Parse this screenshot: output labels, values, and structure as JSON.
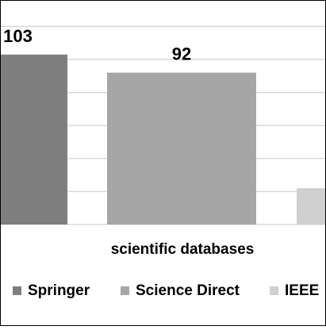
{
  "chart_data": {
    "type": "bar",
    "categories": [
      "scientific databases"
    ],
    "series": [
      {
        "name": "Springer",
        "values": [
          103
        ]
      },
      {
        "name": "Science Direct",
        "values": [
          92
        ]
      },
      {
        "name": "IEEE",
        "values": [
          22
        ]
      }
    ],
    "data_labels": [
      "103",
      "92",
      ""
    ],
    "title": "",
    "xlabel": "scientific databases",
    "ylabel": "",
    "ylim": [
      0,
      120
    ],
    "grid": true,
    "legend_position": "bottom"
  },
  "colors": {
    "Springer": "#7f7f7f",
    "Science Direct": "#a6a6a6",
    "IEEE": "#d0d0d0",
    "grid": "#d9d9d9",
    "frame": "#000000"
  }
}
